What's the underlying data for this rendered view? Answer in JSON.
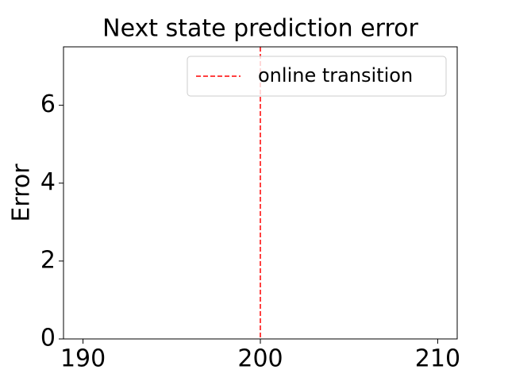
{
  "chart_data": {
    "type": "line",
    "title": "Next state prediction error",
    "y_label": "Error",
    "xlim": [
      188.9,
      211.1
    ],
    "xticks": [
      190,
      200,
      210
    ],
    "ylim": [
      0,
      7.5
    ],
    "yticks": [
      0,
      2,
      4,
      6
    ],
    "vlines": [
      {
        "name": "online transition",
        "x": 200,
        "color": "#ff0000",
        "dash": "dashed"
      }
    ],
    "legend": "upper right",
    "grid": false
  }
}
